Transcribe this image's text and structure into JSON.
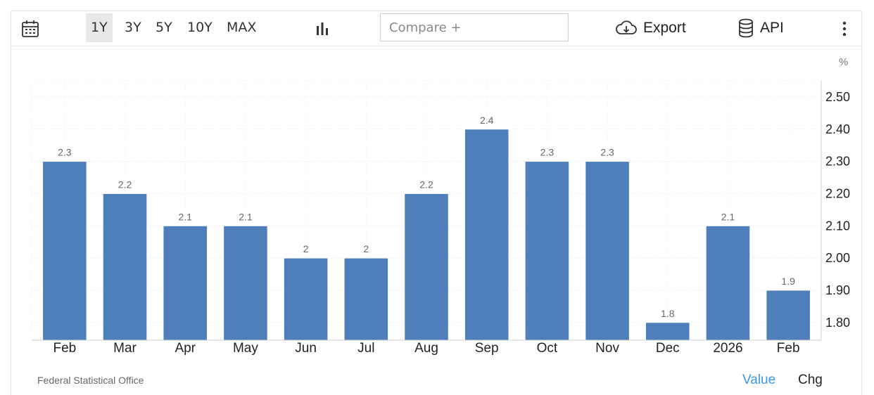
{
  "toolbar": {
    "calendar_icon": "calendar-icon",
    "ranges": [
      "1Y",
      "3Y",
      "5Y",
      "10Y",
      "MAX"
    ],
    "active_range": "1Y",
    "chart_type_icon": "bar-chart-icon",
    "compare_placeholder": "Compare +",
    "export_label": "Export",
    "export_icon": "cloud-download-icon",
    "api_label": "API",
    "api_icon": "database-icon",
    "menu_icon": "more-vertical-icon"
  },
  "footer": {
    "source": "Federal Statistical Office",
    "mode_value": "Value",
    "mode_chg": "Chg",
    "active_color": "#3d9ae8"
  },
  "chart_data": {
    "type": "bar",
    "unit": "%",
    "categories": [
      "Feb",
      "Mar",
      "Apr",
      "May",
      "Jun",
      "Jul",
      "Aug",
      "Sep",
      "Oct",
      "Nov",
      "Dec",
      "2026",
      "Feb"
    ],
    "values": [
      2.3,
      2.2,
      2.1,
      2.1,
      2.0,
      2.0,
      2.2,
      2.4,
      2.3,
      2.3,
      1.8,
      2.1,
      1.9
    ],
    "data_labels": [
      "2.3",
      "2.2",
      "2.1",
      "2.1",
      "2",
      "2",
      "2.2",
      "2.4",
      "2.3",
      "2.3",
      "1.8",
      "2.1",
      "1.9"
    ],
    "y_ticks": [
      "2.50",
      "2.40",
      "2.30",
      "2.20",
      "2.10",
      "2.00",
      "1.90",
      "1.80"
    ],
    "ylim": [
      1.745,
      2.55
    ],
    "y_axis_side": "right",
    "grid": true,
    "bar_color": "#4e7fbb",
    "title": "",
    "xlabel": "",
    "ylabel": ""
  }
}
